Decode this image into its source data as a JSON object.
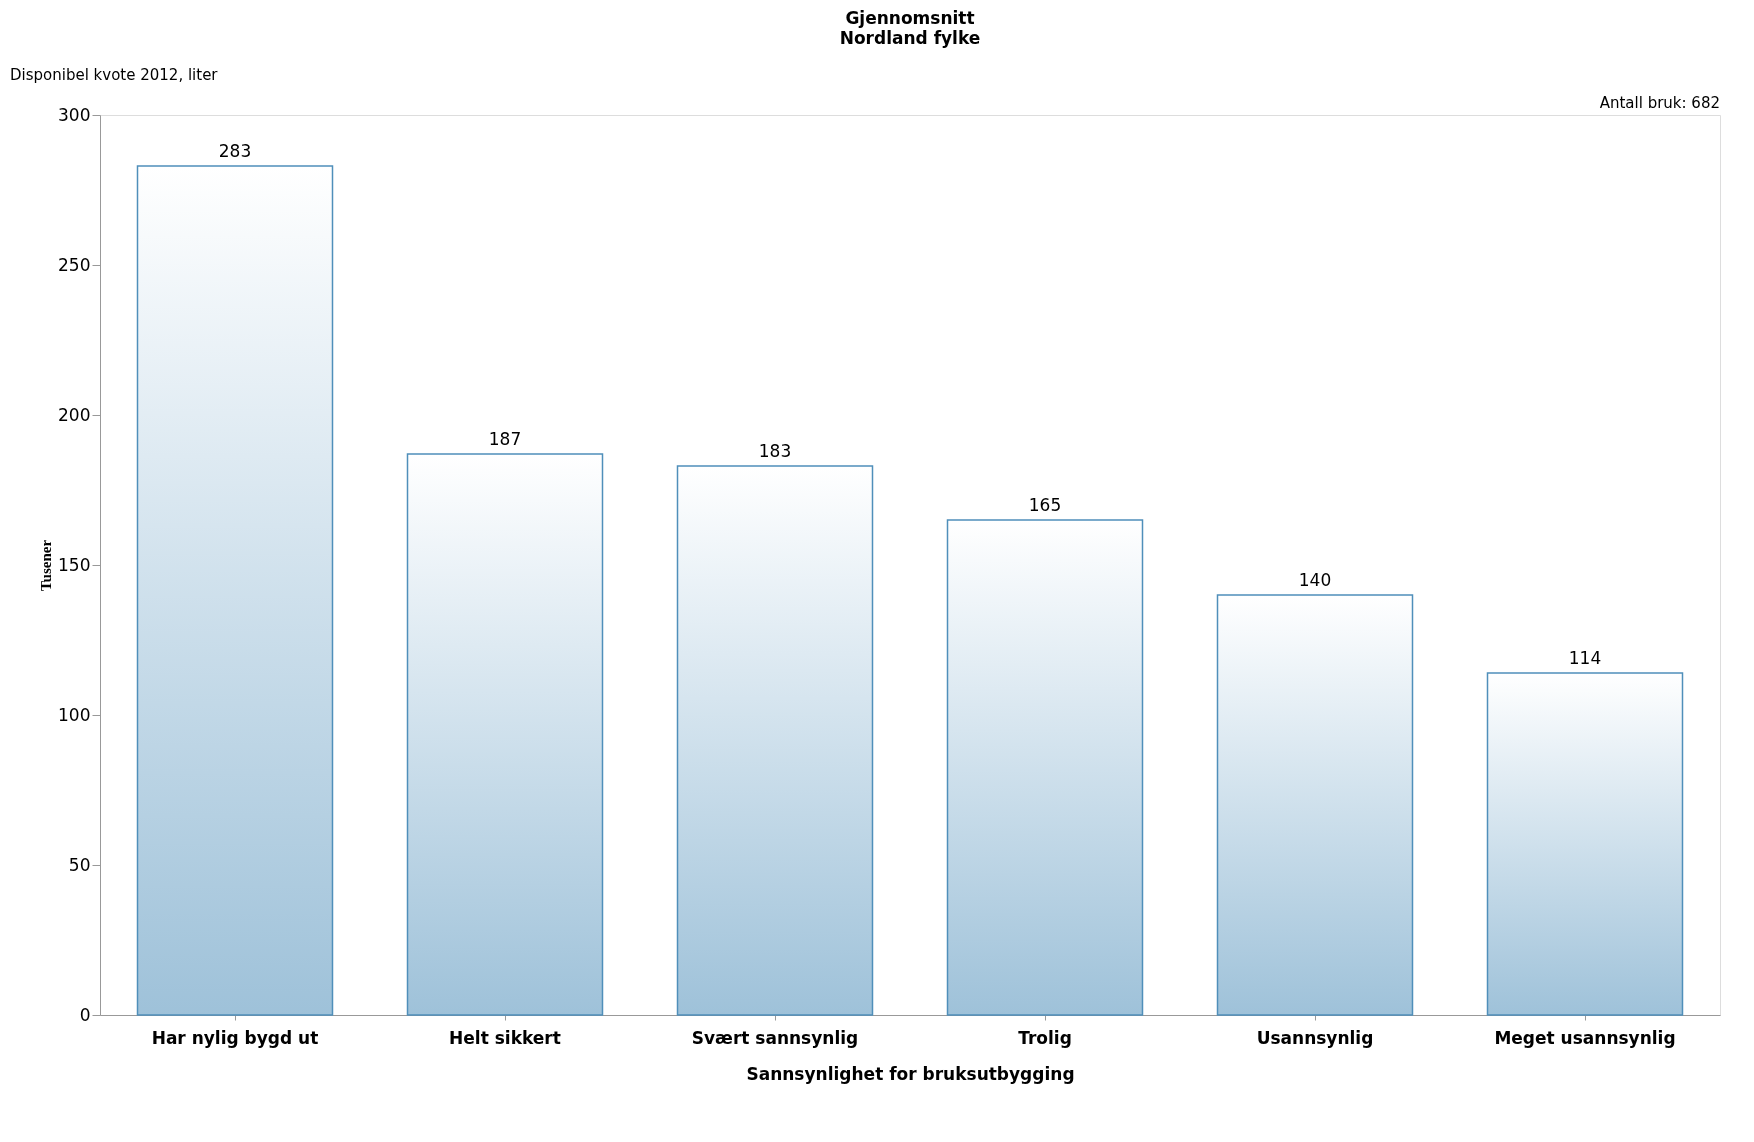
{
  "chart_data": {
    "type": "bar",
    "title": "Gjennomsnitt",
    "subtitle": "Nordland fylke",
    "xlabel": "Sannsynlighet for bruksutbygging",
    "ylabel": "Tusener",
    "annotations": [
      "Disponibel kvote 2012, liter",
      "Antall bruk: 682"
    ],
    "categories": [
      "Har nylig bygd ut",
      "Helt sikkert",
      "Svært sannsynlig",
      "Trolig",
      "Usannsynlig",
      "Meget usannsynlig"
    ],
    "values": [
      283,
      187,
      183,
      165,
      140,
      114
    ],
    "color": "#4f8fba",
    "ylim": [
      0,
      300
    ],
    "yticks": [
      0,
      50,
      100,
      150,
      200,
      250,
      300
    ],
    "data_labels": true,
    "grid": false
  }
}
